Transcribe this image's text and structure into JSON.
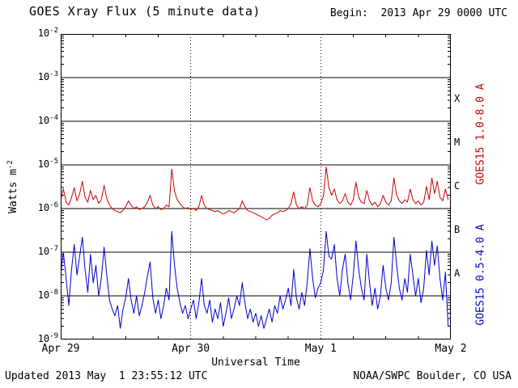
{
  "header": {
    "title": "GOES Xray Flux (5 minute data)",
    "begin_label": "Begin:  2013 Apr 29 0000 UTC"
  },
  "footer": {
    "updated": "Updated 2013 May  1 23:55:12 UTC",
    "source": "NOAA/SWPC Boulder, CO USA"
  },
  "chart_data": {
    "type": "line",
    "title": "GOES Xray Flux (5 minute data)",
    "xlabel": "Universal Time",
    "ylabel_base": "Watts m",
    "ylabel_exp": "-2",
    "y_tick_base": "10",
    "x_axis": {
      "start_hour": 0,
      "end_hour": 72,
      "tick_hours": [
        0,
        24,
        48,
        72
      ],
      "tick_labels": [
        "Apr 29",
        "Apr 30",
        "May 1",
        "May 2"
      ],
      "minor_tick_step_hours": 6
    },
    "y_axis": {
      "log": true,
      "min_exp": -9,
      "max_exp": -2,
      "tick_exponents": [
        -2,
        -3,
        -4,
        -5,
        -6,
        -7,
        -8,
        -9
      ],
      "grid": true
    },
    "flare_class_labels": [
      {
        "label": "X",
        "center_exp": -3.5
      },
      {
        "label": "M",
        "center_exp": -4.5
      },
      {
        "label": "C",
        "center_exp": -5.5
      },
      {
        "label": "B",
        "center_exp": -6.5
      },
      {
        "label": "A",
        "center_exp": -7.5
      }
    ],
    "series": [
      {
        "name": "GOES15 1.0-8.0 A",
        "color": "#cc0000",
        "t0": 0,
        "dt_hours": 0.5,
        "scale": 1e-06,
        "values": [
          1.6,
          2.8,
          1.4,
          1.2,
          1.8,
          3.0,
          1.5,
          2.2,
          4.2,
          1.8,
          1.4,
          2.6,
          1.6,
          2.0,
          1.3,
          1.6,
          3.4,
          1.7,
          1.2,
          1.0,
          0.9,
          0.85,
          0.8,
          0.9,
          1.1,
          1.5,
          1.2,
          1.0,
          1.1,
          0.95,
          1.0,
          1.1,
          1.4,
          2.0,
          1.2,
          1.0,
          1.1,
          0.95,
          1.0,
          1.2,
          1.1,
          8.0,
          2.5,
          1.6,
          1.3,
          1.1,
          1.0,
          1.05,
          0.95,
          1.0,
          0.9,
          1.1,
          2.0,
          1.2,
          1.0,
          0.95,
          0.9,
          0.85,
          0.9,
          0.8,
          0.75,
          0.8,
          0.9,
          0.85,
          0.8,
          0.9,
          1.0,
          1.5,
          1.1,
          0.9,
          0.85,
          0.8,
          0.75,
          0.7,
          0.65,
          0.6,
          0.55,
          0.6,
          0.7,
          0.75,
          0.8,
          0.9,
          0.85,
          0.9,
          1.0,
          1.3,
          2.4,
          1.2,
          1.0,
          1.1,
          1.0,
          1.2,
          3.0,
          1.5,
          1.2,
          1.1,
          1.3,
          2.0,
          9.0,
          3.0,
          2.0,
          2.8,
          1.6,
          1.3,
          1.5,
          2.2,
          1.4,
          1.2,
          1.6,
          4.0,
          1.8,
          1.4,
          1.3,
          2.6,
          1.5,
          1.2,
          1.4,
          1.1,
          1.3,
          2.0,
          1.4,
          1.2,
          1.5,
          5.0,
          2.0,
          1.5,
          1.3,
          1.6,
          1.4,
          2.8,
          1.6,
          1.3,
          1.5,
          1.2,
          1.4,
          3.2,
          1.6,
          5.0,
          2.2,
          4.2,
          1.8,
          1.5,
          2.8,
          1.6
        ]
      },
      {
        "name": "GOES15 0.5-4.0 A",
        "color": "#0000cc",
        "t0": 0,
        "dt_hours": 0.5,
        "scale": 1e-09,
        "values": [
          30,
          100,
          25,
          6,
          40,
          150,
          30,
          80,
          220,
          40,
          12,
          90,
          20,
          50,
          10,
          25,
          130,
          30,
          8,
          5,
          3.5,
          6,
          1.8,
          5,
          9,
          25,
          8,
          4,
          10,
          3.5,
          6,
          12,
          28,
          60,
          9,
          4,
          8,
          3,
          6,
          15,
          8,
          300,
          50,
          15,
          7,
          4,
          6,
          3,
          5,
          8,
          3,
          7,
          25,
          6,
          4,
          8,
          2.5,
          5,
          3,
          7,
          2,
          4,
          9,
          3,
          5,
          10,
          6,
          20,
          7,
          3,
          5,
          2.5,
          4,
          2,
          3.5,
          1.8,
          3,
          5,
          2.5,
          6,
          4,
          10,
          5,
          8,
          15,
          6,
          40,
          9,
          5,
          12,
          6,
          20,
          120,
          25,
          9,
          15,
          20,
          40,
          300,
          80,
          70,
          150,
          25,
          10,
          40,
          90,
          20,
          8,
          30,
          180,
          40,
          15,
          8,
          90,
          20,
          6,
          15,
          5,
          10,
          50,
          15,
          8,
          20,
          220,
          50,
          15,
          8,
          25,
          12,
          90,
          30,
          10,
          25,
          7,
          15,
          110,
          30,
          180,
          50,
          140,
          25,
          8,
          35,
          2
        ]
      }
    ]
  }
}
